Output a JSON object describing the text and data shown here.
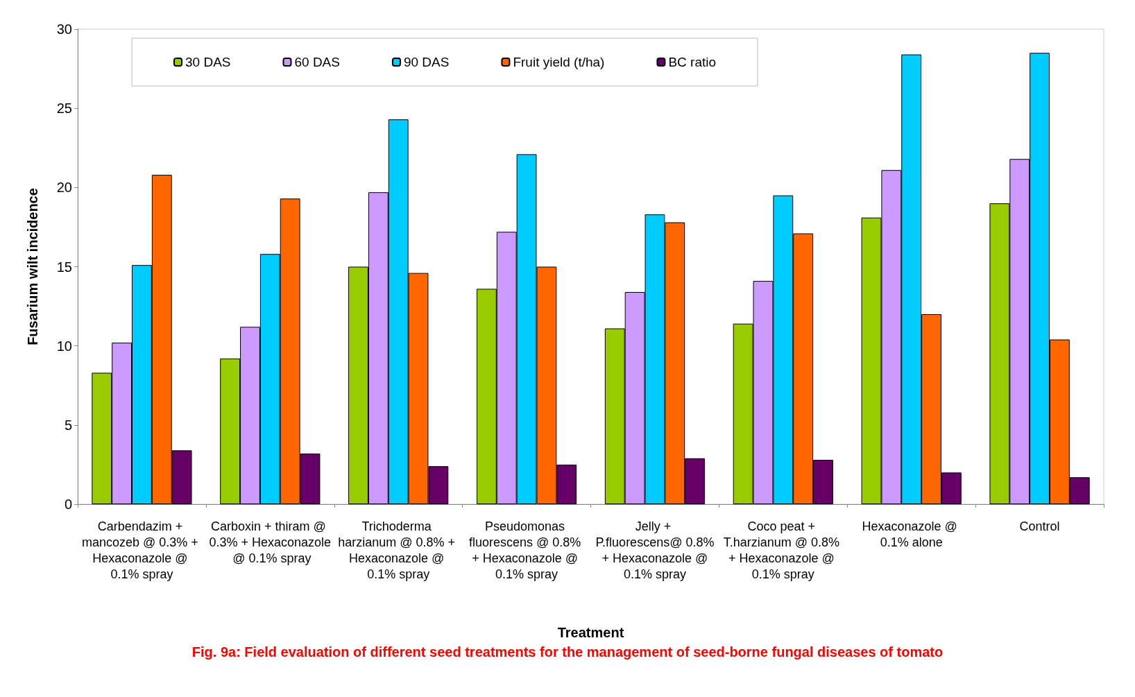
{
  "chart_data": {
    "type": "bar",
    "title": "Fig. 9a: Field evaluation of different seed treatments for the management of seed-borne fungal diseases of tomato",
    "xlabel": "Treatment",
    "ylabel": "Fusarium wilt incidence",
    "categories": [
      "Carbendazim + mancozeb @ 0.3% + Hexaconazole @ 0.1% spray",
      "Carboxin + thiram @ 0.3% + Hexaconazole @ 0.1% spray",
      "Trichoderma harzianum @ 0.8% + Hexaconazole @ 0.1% spray",
      "Pseudomonas fluorescens @ 0.8% + Hexaconazole @ 0.1% spray",
      "Jelly + P.fluorescens@ 0.8% + Hexaconazole @ 0.1% spray",
      "Coco peat + T.harzianum @ 0.8% + Hexaconazole @ 0.1% spray",
      "Hexaconazole @ 0.1% alone",
      "Control"
    ],
    "series": [
      {
        "name": "30 DAS",
        "color": "#99cc00",
        "values": [
          8.3,
          9.2,
          15.0,
          13.6,
          11.1,
          11.4,
          18.1,
          19.0
        ]
      },
      {
        "name": "60 DAS",
        "color": "#cc99ff",
        "values": [
          10.2,
          11.2,
          19.7,
          17.2,
          13.4,
          14.1,
          21.1,
          21.8
        ]
      },
      {
        "name": "90 DAS",
        "color": "#00ccff",
        "values": [
          15.1,
          15.8,
          24.3,
          22.1,
          18.3,
          19.5,
          28.4,
          28.5
        ]
      },
      {
        "name": "Fruit yield (t/ha)",
        "color": "#ff6600",
        "values": [
          20.8,
          19.3,
          14.6,
          15.0,
          17.8,
          17.1,
          12.0,
          10.4
        ]
      },
      {
        "name": "BC ratio",
        "color": "#660066",
        "values": [
          3.4,
          3.2,
          2.4,
          2.5,
          2.9,
          2.8,
          2.0,
          1.7
        ]
      }
    ],
    "ylim": [
      0,
      30
    ],
    "yticks": [
      0,
      5,
      10,
      15,
      20,
      25,
      30
    ],
    "grid": false,
    "legend": "top"
  }
}
